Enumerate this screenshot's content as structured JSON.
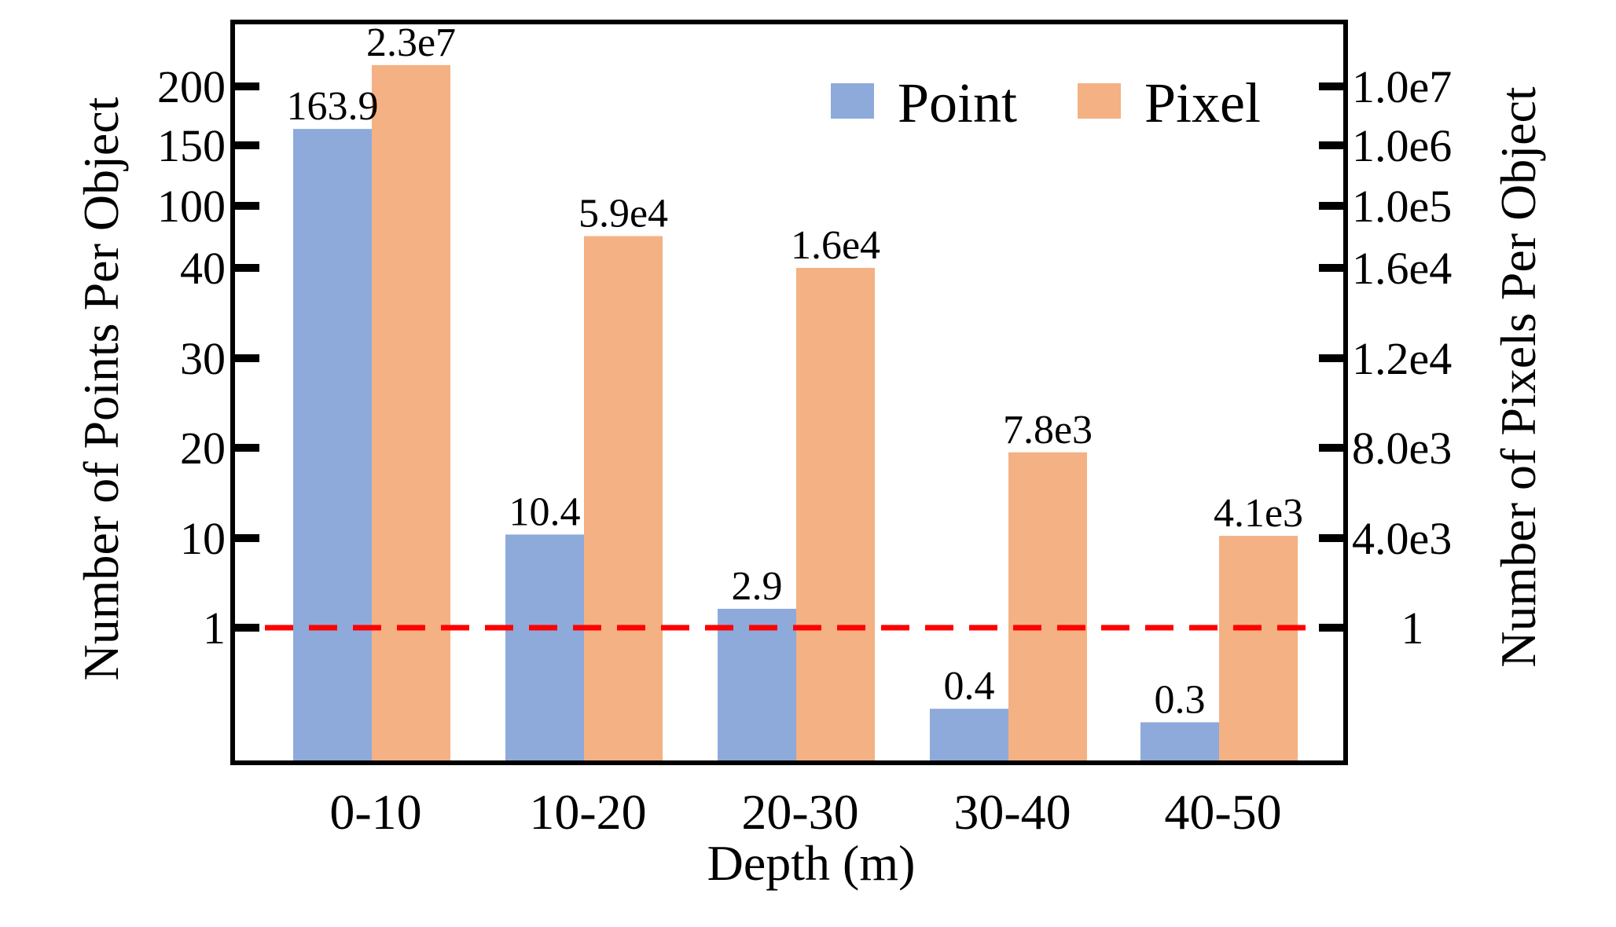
{
  "chart_data": {
    "type": "bar",
    "xlabel": "Depth (m)",
    "ylabel_left": "Number of Points Per Object",
    "ylabel_right": "Number of Pixels Per Object",
    "categories": [
      "0-10",
      "10-20",
      "20-30",
      "30-40",
      "40-50"
    ],
    "left_ticks": [
      "1",
      "10",
      "20",
      "30",
      "40",
      "100",
      "150",
      "200"
    ],
    "right_ticks": [
      "1",
      "4.0e3",
      "8.0e3",
      "1.2e4",
      "1.6e4",
      "1.0e5",
      "1.0e6",
      "1.0e7"
    ],
    "series": [
      {
        "name": "Point",
        "axis": "left",
        "color": "#8eaadb",
        "values": [
          163.9,
          10.4,
          2.9,
          0.4,
          0.3
        ],
        "labels": [
          "163.9",
          "10.4",
          "2.9",
          "0.4",
          "0.3"
        ]
      },
      {
        "name": "Pixel",
        "axis": "right",
        "color": "#f4b183",
        "values": [
          23000000,
          59000,
          16000,
          7800,
          4100
        ],
        "labels": [
          "2.3e7",
          "5.9e4",
          "1.6e4",
          "7.8e3",
          "4.1e3"
        ]
      }
    ],
    "reference_line": {
      "value": 1,
      "color": "#ff0000",
      "style": "dashed"
    },
    "legend": {
      "position": "top-right",
      "entries": [
        "Point",
        "Pixel"
      ]
    }
  }
}
